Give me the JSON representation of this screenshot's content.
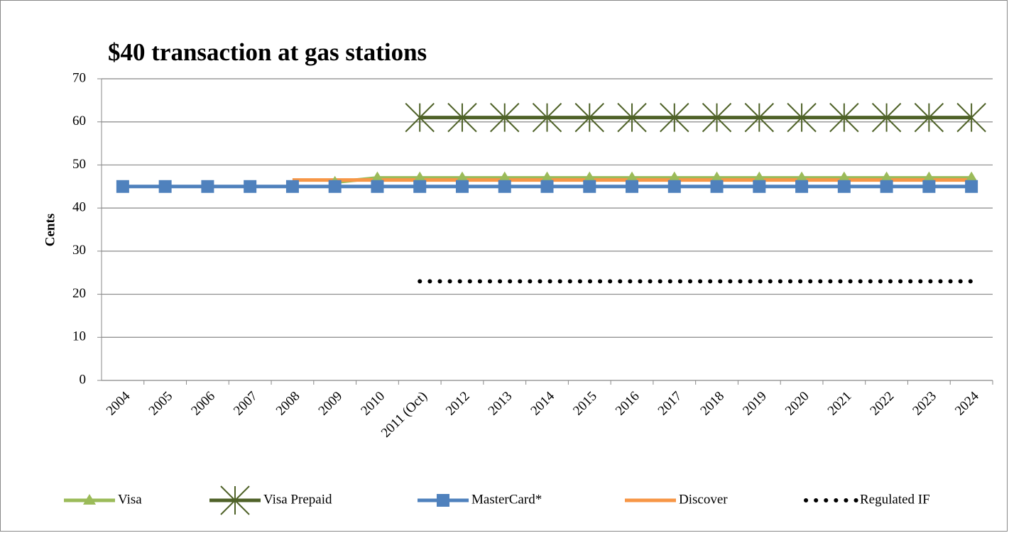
{
  "chart_data": {
    "type": "line",
    "title": "$40 transaction at gas stations",
    "y_label": "Cents",
    "categories": [
      "2004",
      "2005",
      "2006",
      "2007",
      "2008",
      "2009",
      "2010",
      "2011 (Oct)",
      "2012",
      "2013",
      "2014",
      "2015",
      "2016",
      "2017",
      "2018",
      "2019",
      "2020",
      "2021",
      "2022",
      "2023",
      "2024"
    ],
    "series": [
      {
        "name": "Visa",
        "color": "#9bbb59",
        "marker": "triangle",
        "dash": "solid",
        "values": [
          null,
          null,
          null,
          null,
          null,
          46,
          47,
          47,
          47,
          47,
          47,
          47,
          47,
          47,
          47,
          47,
          47,
          47,
          47,
          47,
          47
        ]
      },
      {
        "name": "Visa Prepaid",
        "color": "#4f6228",
        "marker": "star",
        "dash": "solid",
        "values": [
          null,
          null,
          null,
          null,
          null,
          null,
          null,
          61,
          61,
          61,
          61,
          61,
          61,
          61,
          61,
          61,
          61,
          61,
          61,
          61,
          61
        ]
      },
      {
        "name": "MasterCard*",
        "color": "#4f81bd",
        "marker": "square",
        "dash": "solid",
        "values": [
          45,
          45,
          45,
          45,
          45,
          45,
          45,
          45,
          45,
          45,
          45,
          45,
          45,
          45,
          45,
          45,
          45,
          45,
          45,
          45,
          45
        ]
      },
      {
        "name": "Discover",
        "color": "#f79646",
        "marker": "none",
        "dash": "solid",
        "values": [
          null,
          null,
          null,
          null,
          46.5,
          46.5,
          46.5,
          46.5,
          46.5,
          46.5,
          46.5,
          46.5,
          46.5,
          46.5,
          46.5,
          46.5,
          46.5,
          46.5,
          46.5,
          46.5,
          46.5
        ]
      },
      {
        "name": "Regulated IF",
        "color": "#000000",
        "marker": "none",
        "dash": "dot",
        "values": [
          null,
          null,
          null,
          null,
          null,
          null,
          null,
          23,
          23,
          23,
          23,
          23,
          23,
          23,
          23,
          23,
          23,
          23,
          23,
          23,
          23
        ]
      }
    ],
    "ylim": [
      0,
      70
    ],
    "yticks": [
      0,
      10,
      20,
      30,
      40,
      50,
      60,
      70
    ],
    "grid": true,
    "legend": "bottom"
  }
}
